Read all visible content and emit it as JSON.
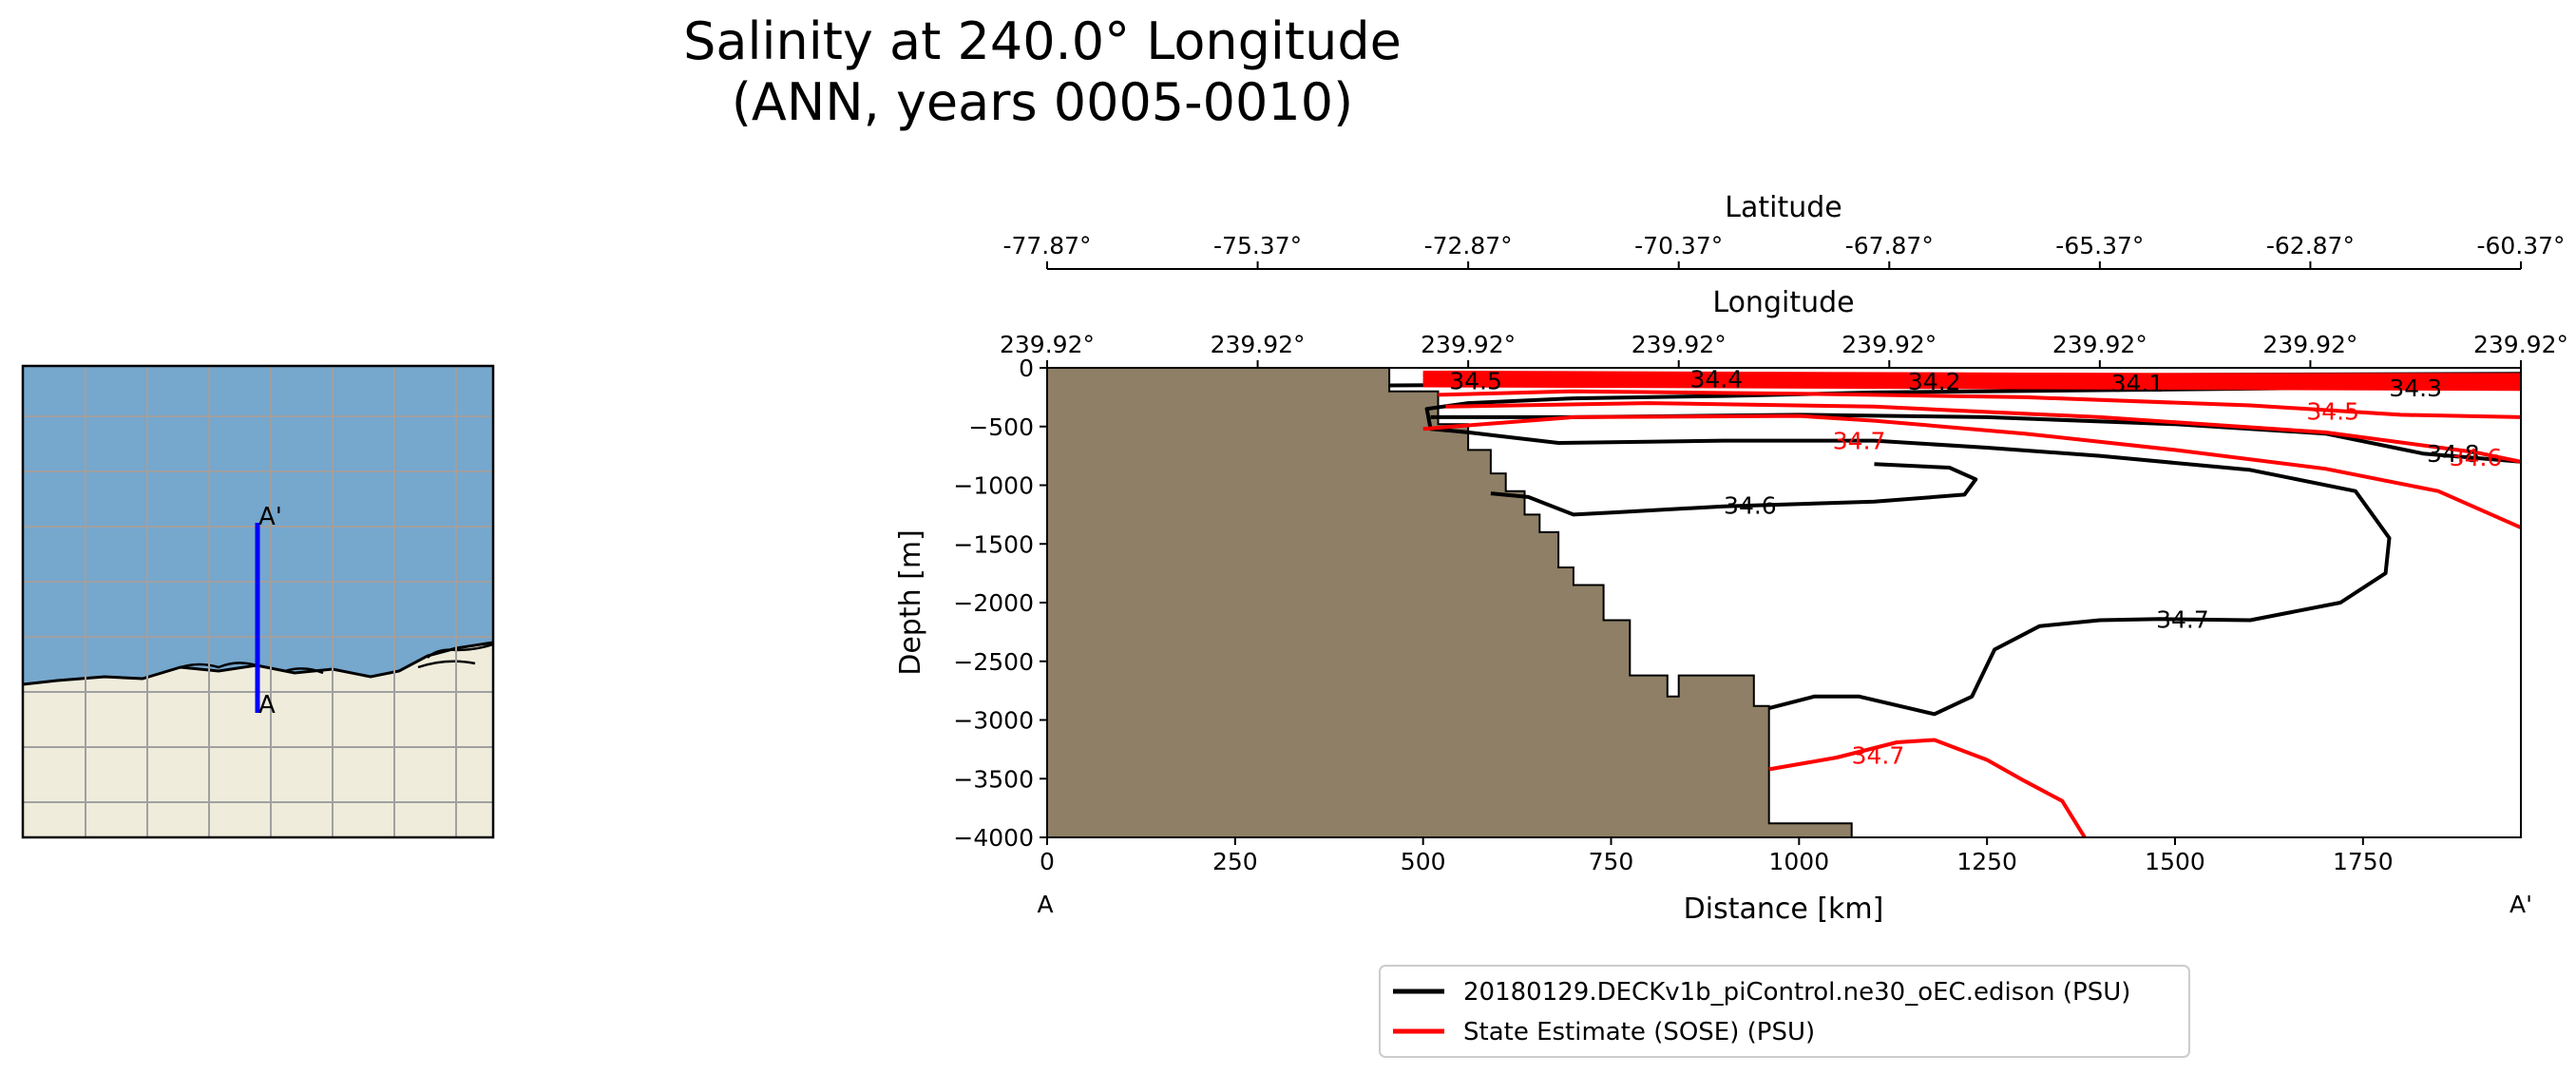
{
  "figure": {
    "title_line1": "Salinity at 240.0° Longitude",
    "title_line2": "(ANN, years 0005-0010)"
  },
  "inset_map": {
    "point_a": "A",
    "point_a_prime": "A'",
    "colors": {
      "ocean": "#76a7cd",
      "land": "#efecdb",
      "transect": "#0000ff",
      "grid": "#a0a0a0"
    }
  },
  "chart_data": {
    "type": "line",
    "xlabel": "Distance [km]",
    "ylabel": "Depth [m]",
    "xlim": [
      0,
      1960
    ],
    "ylim": [
      -4000,
      0
    ],
    "x_ticks": [
      0,
      250,
      500,
      750,
      1000,
      1250,
      1500,
      1750
    ],
    "y_ticks": [
      0,
      -500,
      -1000,
      -1500,
      -2000,
      -2500,
      -3000,
      -3500,
      -4000
    ],
    "start_label": "A",
    "end_label": "A'",
    "top_axis_latitude": {
      "label": "Latitude",
      "ticks": [
        "-77.87°",
        "-75.37°",
        "-72.87°",
        "-70.37°",
        "-67.87°",
        "-65.37°",
        "-62.87°",
        "-60.37°"
      ]
    },
    "top_axis_longitude": {
      "label": "Longitude",
      "ticks": [
        "239.92°",
        "239.92°",
        "239.92°",
        "239.92°",
        "239.92°",
        "239.92°",
        "239.92°",
        "239.92°"
      ]
    },
    "bathymetry_color": "#8e7f66",
    "series": [
      {
        "name": "20180129.DECKv1b_piControl.ne30_oEC.edison (PSU)",
        "color": "#000000",
        "contours": [
          {
            "level": "34.7",
            "points": [
              [
                960,
                -2900
              ],
              [
                1020,
                -2800
              ],
              [
                1080,
                -2800
              ],
              [
                1180,
                -2950
              ],
              [
                1230,
                -2800
              ],
              [
                1260,
                -2400
              ],
              [
                1320,
                -2200
              ],
              [
                1400,
                -2150
              ],
              [
                1480,
                -2140
              ],
              [
                1600,
                -2150
              ],
              [
                1720,
                -2000
              ],
              [
                1780,
                -1750
              ],
              [
                1785,
                -1450
              ],
              [
                1740,
                -1050
              ],
              [
                1600,
                -870
              ],
              [
                1400,
                -750
              ],
              [
                1250,
                -680
              ],
              [
                1100,
                -620
              ],
              [
                900,
                -620
              ],
              [
                680,
                -640
              ],
              [
                600,
                -580
              ],
              [
                560,
                -550
              ],
              [
                510,
                -520
              ],
              [
                505,
                -350
              ],
              [
                560,
                -300
              ],
              [
                700,
                -260
              ],
              [
                900,
                -240
              ],
              [
                1100,
                -210
              ],
              [
                1400,
                -190
              ],
              [
                1700,
                -170
              ],
              [
                1960,
                -160
              ]
            ]
          },
          {
            "level": "34.6",
            "points": [
              [
                590,
                -1070
              ],
              [
                640,
                -1100
              ],
              [
                700,
                -1250
              ],
              [
                760,
                -1230
              ],
              [
                900,
                -1180
              ],
              [
                1100,
                -1140
              ],
              [
                1220,
                -1080
              ],
              [
                1235,
                -950
              ],
              [
                1200,
                -850
              ],
              [
                1100,
                -820
              ]
            ]
          },
          {
            "level": "34.5",
            "points": [
              [
                455,
                -150
              ],
              [
                700,
                -140
              ],
              [
                1000,
                -120
              ],
              [
                1300,
                -110
              ],
              [
                1700,
                -100
              ],
              [
                1960,
                -90
              ]
            ]
          },
          {
            "level": "34.8",
            "points": [
              [
                510,
                -420
              ],
              [
                700,
                -420
              ],
              [
                1000,
                -400
              ],
              [
                1250,
                -420
              ],
              [
                1500,
                -480
              ],
              [
                1700,
                -560
              ],
              [
                1830,
                -730
              ],
              [
                1960,
                -800
              ]
            ]
          },
          {
            "level": "34.4",
            "points": [
              [
                520,
                -100
              ],
              [
                800,
                -90
              ],
              [
                1100,
                -70
              ],
              [
                1500,
                -60
              ],
              [
                1960,
                -50
              ]
            ]
          }
        ]
      },
      {
        "name": "State Estimate (SOSE) (PSU)",
        "color": "#ff0000",
        "contours": [
          {
            "level": "34.7",
            "points": [
              [
                500,
                -520
              ],
              [
                700,
                -420
              ],
              [
                1000,
                -410
              ],
              [
                1100,
                -450
              ],
              [
                1300,
                -560
              ],
              [
                1500,
                -700
              ],
              [
                1700,
                -860
              ],
              [
                1850,
                -1050
              ],
              [
                1960,
                -1360
              ]
            ]
          },
          {
            "level": "34.5",
            "points": [
              [
                520,
                -230
              ],
              [
                700,
                -200
              ],
              [
                1000,
                -220
              ],
              [
                1300,
                -250
              ],
              [
                1600,
                -320
              ],
              [
                1800,
                -400
              ],
              [
                1960,
                -420
              ]
            ]
          },
          {
            "level": "34.6",
            "points": [
              [
                530,
                -330
              ],
              [
                800,
                -300
              ],
              [
                1100,
                -330
              ],
              [
                1400,
                -420
              ],
              [
                1700,
                -550
              ],
              [
                1900,
                -720
              ],
              [
                1960,
                -800
              ]
            ]
          },
          {
            "level": "34.4",
            "points": [
              [
                500,
                -120
              ],
              [
                800,
                -100
              ],
              [
                1200,
                -90
              ],
              [
                1600,
                -100
              ],
              [
                1960,
                -110
              ]
            ]
          },
          {
            "level": "34.3",
            "points": [
              [
                500,
                -60
              ],
              [
                900,
                -50
              ],
              [
                1400,
                -60
              ],
              [
                1960,
                -60
              ]
            ]
          },
          {
            "level": "34.7",
            "points": [
              [
                960,
                -3420
              ],
              [
                1050,
                -3320
              ],
              [
                1130,
                -3190
              ],
              [
                1180,
                -3170
              ],
              [
                1250,
                -3340
              ],
              [
                1300,
                -3520
              ],
              [
                1350,
                -3690
              ],
              [
                1380,
                -4000
              ]
            ]
          }
        ]
      }
    ],
    "contour_labels": [
      {
        "text": "34.5",
        "x": 570,
        "y": -110,
        "color": "#000000"
      },
      {
        "text": "34.4",
        "x": 890,
        "y": -95,
        "color": "#000000"
      },
      {
        "text": "34.2",
        "x": 1180,
        "y": -115,
        "color": "#000000"
      },
      {
        "text": "34.1",
        "x": 1450,
        "y": -130,
        "color": "#000000"
      },
      {
        "text": "34.3",
        "x": 1820,
        "y": -170,
        "color": "#000000"
      },
      {
        "text": "34.6",
        "x": 935,
        "y": -1170,
        "color": "#000000"
      },
      {
        "text": "34.7",
        "x": 1510,
        "y": -2140,
        "color": "#000000"
      },
      {
        "text": "34.8",
        "x": 1870,
        "y": -730,
        "color": "#000000"
      },
      {
        "text": "34.7",
        "x": 1080,
        "y": -620,
        "color": "#ff0000"
      },
      {
        "text": "34.5",
        "x": 1710,
        "y": -370,
        "color": "#ff0000"
      },
      {
        "text": "34.6",
        "x": 1900,
        "y": -760,
        "color": "#ff0000"
      },
      {
        "text": "34.7",
        "x": 1105,
        "y": -3300,
        "color": "#ff0000"
      }
    ],
    "bathymetry": [
      [
        455,
        0
      ],
      [
        455,
        -200
      ],
      [
        520,
        -200
      ],
      [
        520,
        -480
      ],
      [
        560,
        -480
      ],
      [
        560,
        -700
      ],
      [
        590,
        -700
      ],
      [
        590,
        -900
      ],
      [
        610,
        -900
      ],
      [
        610,
        -1050
      ],
      [
        635,
        -1050
      ],
      [
        635,
        -1250
      ],
      [
        655,
        -1250
      ],
      [
        655,
        -1400
      ],
      [
        680,
        -1400
      ],
      [
        680,
        -1700
      ],
      [
        700,
        -1700
      ],
      [
        700,
        -1850
      ],
      [
        740,
        -1850
      ],
      [
        740,
        -2150
      ],
      [
        775,
        -2150
      ],
      [
        775,
        -2620
      ],
      [
        825,
        -2620
      ],
      [
        825,
        -2800
      ],
      [
        840,
        -2800
      ],
      [
        840,
        -2620
      ],
      [
        940,
        -2620
      ],
      [
        940,
        -2880
      ],
      [
        960,
        -2880
      ],
      [
        960,
        -3880
      ],
      [
        1070,
        -3880
      ],
      [
        1070,
        -4000
      ],
      [
        0,
        -4000
      ],
      [
        0,
        0
      ]
    ]
  }
}
